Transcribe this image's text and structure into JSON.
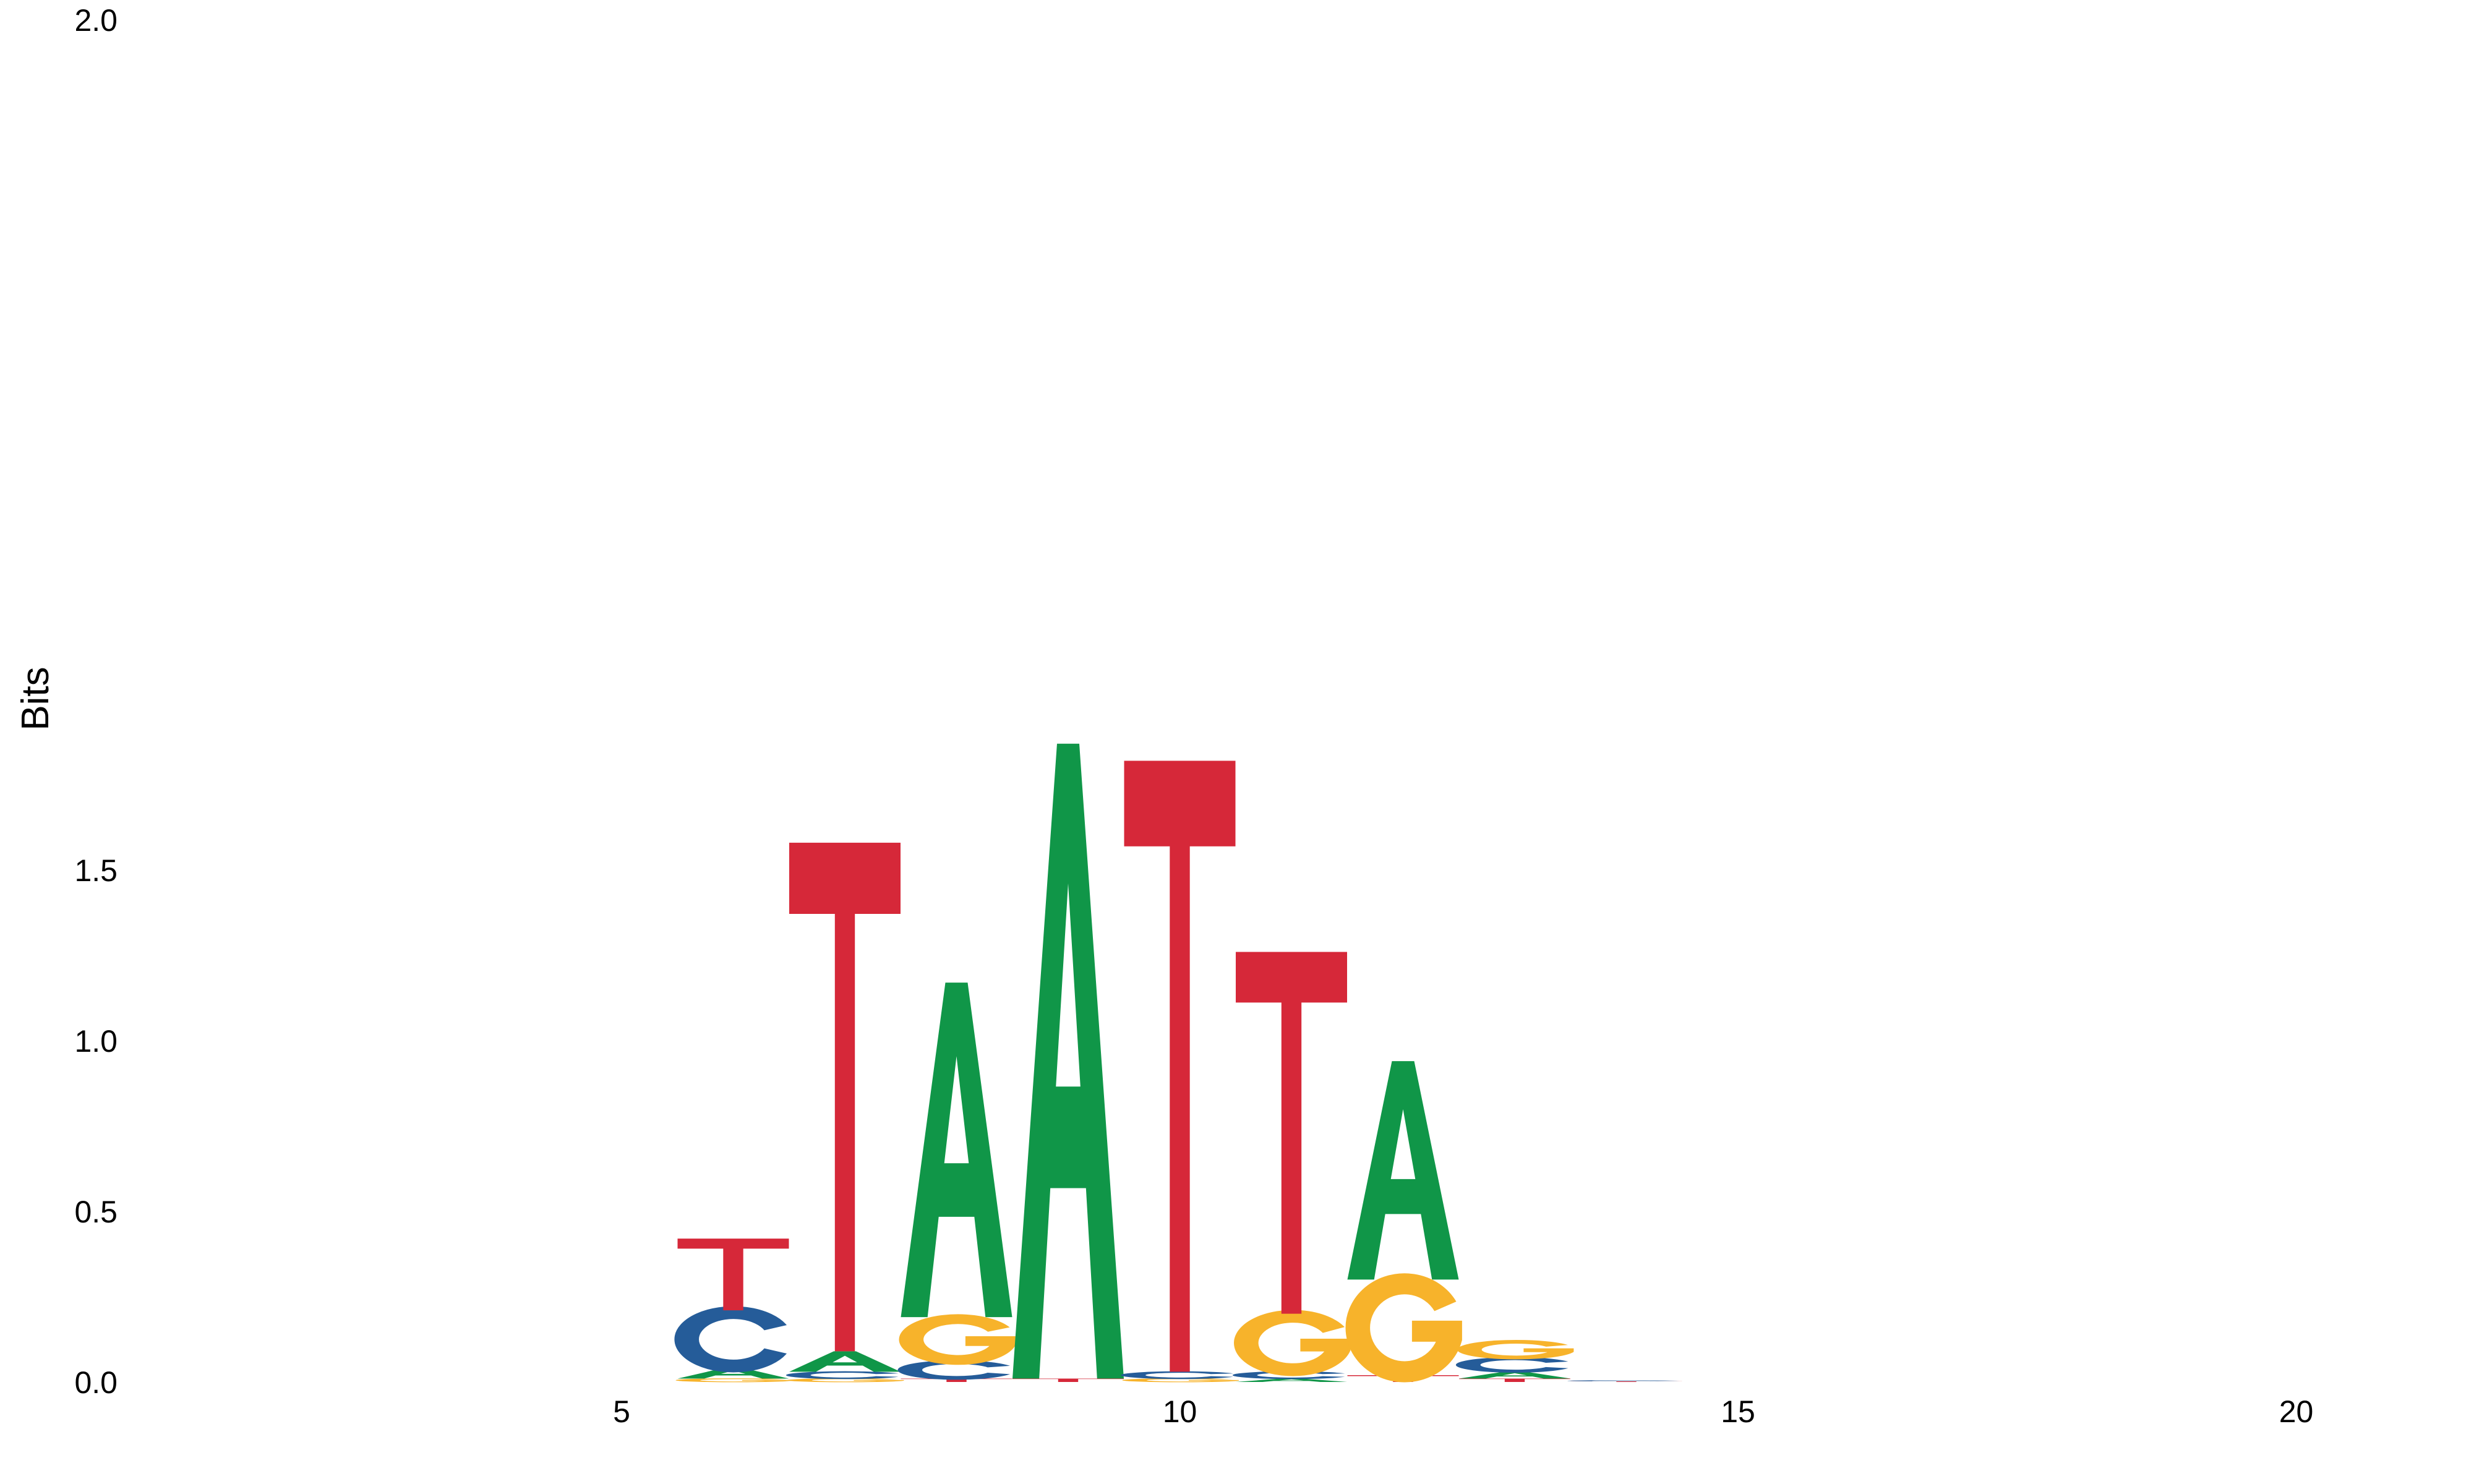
{
  "chart_data": {
    "type": "sequence-logo",
    "title": "",
    "xlabel": "",
    "ylabel": "Bits",
    "xlim": [
      0,
      22
    ],
    "ylim": [
      0,
      2
    ],
    "x_ticks": [
      "5",
      "10",
      "15",
      "20"
    ],
    "y_ticks": [
      "0.0",
      "0.5",
      "1.0",
      "1.5",
      "2.0"
    ],
    "grid": false,
    "colors": {
      "A": "#109648",
      "C": "#255C99",
      "G": "#F7B32B",
      "T": "#D62839"
    },
    "positions": [
      {
        "pos": 6,
        "stack": [
          {
            "letter": "G",
            "bits": 0.01
          },
          {
            "letter": "A",
            "bits": 0.03
          },
          {
            "letter": "C",
            "bits": 0.17
          },
          {
            "letter": "T",
            "bits": 0.21
          }
        ]
      },
      {
        "pos": 7,
        "stack": [
          {
            "letter": "G",
            "bits": 0.01
          },
          {
            "letter": "C",
            "bits": 0.02
          },
          {
            "letter": "A",
            "bits": 0.06
          },
          {
            "letter": "T",
            "bits": 1.49
          }
        ]
      },
      {
        "pos": 8,
        "stack": [
          {
            "letter": "T",
            "bits": 0.01
          },
          {
            "letter": "C",
            "bits": 0.05
          },
          {
            "letter": "G",
            "bits": 0.13
          },
          {
            "letter": "A",
            "bits": 0.98
          }
        ]
      },
      {
        "pos": 9,
        "stack": [
          {
            "letter": "T",
            "bits": 0.01
          },
          {
            "letter": "A",
            "bits": 1.86
          }
        ]
      },
      {
        "pos": 10,
        "stack": [
          {
            "letter": "G",
            "bits": 0.01
          },
          {
            "letter": "C",
            "bits": 0.02
          },
          {
            "letter": "T",
            "bits": 1.79
          }
        ]
      },
      {
        "pos": 11,
        "stack": [
          {
            "letter": "A",
            "bits": 0.01
          },
          {
            "letter": "C",
            "bits": 0.02
          },
          {
            "letter": "G",
            "bits": 0.17
          },
          {
            "letter": "T",
            "bits": 1.06
          }
        ]
      },
      {
        "pos": 12,
        "stack": [
          {
            "letter": "T",
            "bits": 0.02
          },
          {
            "letter": "G",
            "bits": 0.28
          },
          {
            "letter": "A",
            "bits": 0.64
          }
        ]
      },
      {
        "pos": 13,
        "stack": [
          {
            "letter": "T",
            "bits": 0.01
          },
          {
            "letter": "A",
            "bits": 0.02
          },
          {
            "letter": "C",
            "bits": 0.04
          },
          {
            "letter": "G",
            "bits": 0.05
          }
        ]
      },
      {
        "pos": 14,
        "stack": [
          {
            "letter": "T",
            "bits": 0.002
          },
          {
            "letter": "C",
            "bits": 0.003
          }
        ]
      }
    ]
  }
}
